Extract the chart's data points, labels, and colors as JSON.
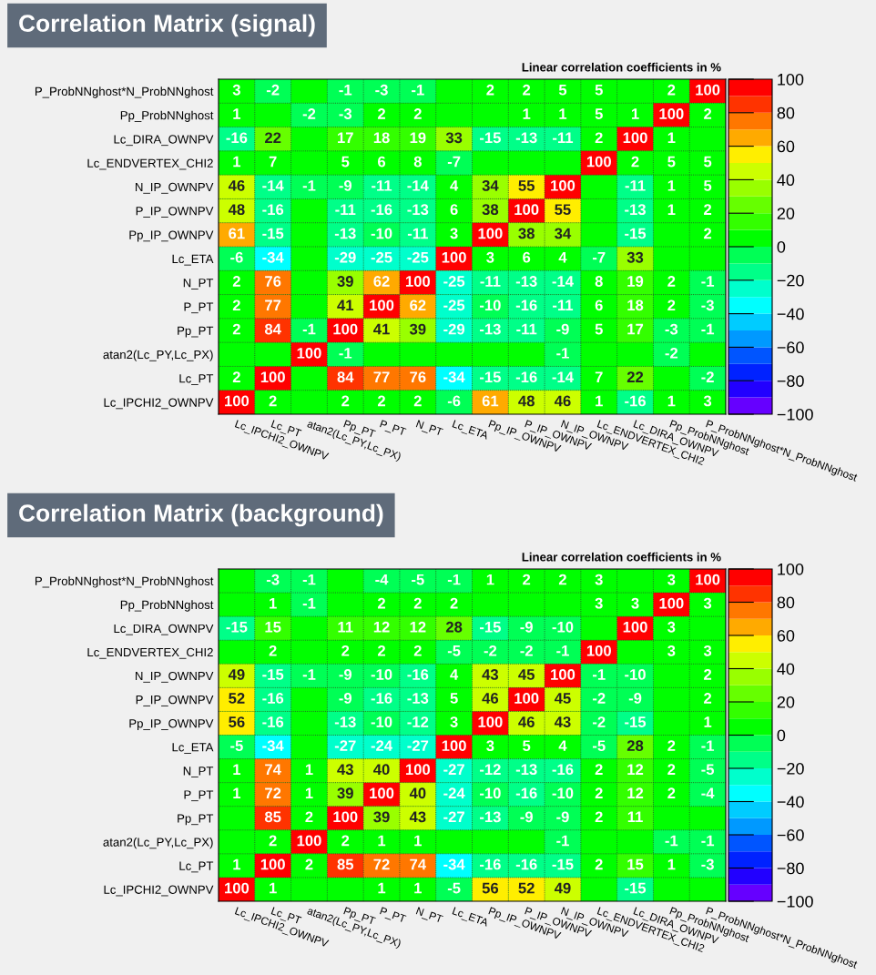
{
  "chart_data": [
    {
      "type": "heatmap",
      "title": "Correlation Matrix (signal)",
      "annotations": [
        "Linear correlation coefficients in %"
      ],
      "categories": [
        "Lc_IPCHI2_OWNPV",
        "Lc_PT",
        "atan2(Lc_PY,Lc_PX)",
        "Pp_PT",
        "P_PT",
        "N_PT",
        "Lc_ETA",
        "Pp_IP_OWNPV",
        "P_IP_OWNPV",
        "N_IP_OWNPV",
        "Lc_ENDVERTEX_CHI2",
        "Lc_DIRA_OWNPV",
        "Pp_ProbNNghost",
        "P_ProbNNghost*N_ProbNNghost"
      ],
      "y_categories": [
        "P_ProbNNghost*N_ProbNNghost",
        "Pp_ProbNNghost",
        "Lc_DIRA_OWNPV",
        "Lc_ENDVERTEX_CHI2",
        "N_IP_OWNPV",
        "P_IP_OWNPV",
        "Pp_IP_OWNPV",
        "Lc_ETA",
        "N_PT",
        "P_PT",
        "Pp_PT",
        "atan2(Lc_PY,Lc_PX)",
        "Lc_PT",
        "Lc_IPCHI2_OWNPV"
      ],
      "cells": [
        [
          3,
          -2,
          null,
          -1,
          -3,
          -1,
          null,
          2,
          2,
          5,
          5,
          null,
          2,
          100
        ],
        [
          1,
          null,
          -2,
          -3,
          2,
          2,
          null,
          null,
          1,
          1,
          5,
          1,
          100,
          2
        ],
        [
          -16,
          22,
          null,
          17,
          18,
          19,
          33,
          -15,
          -13,
          -11,
          2,
          100,
          1,
          null
        ],
        [
          1,
          7,
          null,
          5,
          6,
          8,
          -7,
          null,
          null,
          null,
          100,
          2,
          5,
          5
        ],
        [
          46,
          -14,
          -1,
          -9,
          -11,
          -14,
          4,
          34,
          55,
          100,
          null,
          -11,
          1,
          5
        ],
        [
          48,
          -16,
          null,
          -11,
          -16,
          -13,
          6,
          38,
          100,
          55,
          null,
          -13,
          1,
          2
        ],
        [
          61,
          -15,
          null,
          -13,
          -10,
          -11,
          3,
          100,
          38,
          34,
          null,
          -15,
          null,
          2
        ],
        [
          -6,
          -34,
          null,
          -29,
          -25,
          -25,
          100,
          3,
          6,
          4,
          -7,
          33,
          null,
          null
        ],
        [
          2,
          76,
          null,
          39,
          62,
          100,
          -25,
          -11,
          -13,
          -14,
          8,
          19,
          2,
          -1
        ],
        [
          2,
          77,
          null,
          41,
          100,
          62,
          -25,
          -10,
          -16,
          -11,
          6,
          18,
          2,
          -3
        ],
        [
          2,
          84,
          -1,
          100,
          41,
          39,
          -29,
          -13,
          -11,
          -9,
          5,
          17,
          -3,
          -1
        ],
        [
          null,
          null,
          100,
          -1,
          null,
          null,
          null,
          null,
          null,
          -1,
          null,
          null,
          -2,
          null
        ],
        [
          2,
          100,
          null,
          84,
          77,
          76,
          -34,
          -15,
          -16,
          -14,
          7,
          22,
          null,
          -2
        ],
        [
          100,
          2,
          null,
          2,
          2,
          2,
          -6,
          61,
          48,
          46,
          1,
          -16,
          1,
          3
        ]
      ],
      "data_labels": true,
      "clim": [
        -100,
        100
      ],
      "cticks": [
        -100,
        -80,
        -60,
        -40,
        -20,
        0,
        20,
        40,
        60,
        80,
        100
      ],
      "colors": [
        "#6600ff",
        "#2200ff",
        "#0022ff",
        "#0055ff",
        "#0099ff",
        "#00ccff",
        "#00ffff",
        "#00ffcc",
        "#00ff88",
        "#00ff55",
        "#00ff00",
        "#33ff00",
        "#66ff00",
        "#99ff00",
        "#ccff00",
        "#ffee00",
        "#ffaa00",
        "#ff7700",
        "#ff3300",
        "#ff0000"
      ],
      "grid": true
    },
    {
      "type": "heatmap",
      "title": "Correlation Matrix (background)",
      "annotations": [
        "Linear correlation coefficients in %"
      ],
      "categories": [
        "Lc_IPCHI2_OWNPV",
        "Lc_PT",
        "atan2(Lc_PY,Lc_PX)",
        "Pp_PT",
        "P_PT",
        "N_PT",
        "Lc_ETA",
        "Pp_IP_OWNPV",
        "P_IP_OWNPV",
        "N_IP_OWNPV",
        "Lc_ENDVERTEX_CHI2",
        "Lc_DIRA_OWNPV",
        "Pp_ProbNNghost",
        "P_ProbNNghost*N_ProbNNghost"
      ],
      "y_categories": [
        "P_ProbNNghost*N_ProbNNghost",
        "Pp_ProbNNghost",
        "Lc_DIRA_OWNPV",
        "Lc_ENDVERTEX_CHI2",
        "N_IP_OWNPV",
        "P_IP_OWNPV",
        "Pp_IP_OWNPV",
        "Lc_ETA",
        "N_PT",
        "P_PT",
        "Pp_PT",
        "atan2(Lc_PY,Lc_PX)",
        "Lc_PT",
        "Lc_IPCHI2_OWNPV"
      ],
      "cells": [
        [
          null,
          -3,
          -1,
          null,
          -4,
          -5,
          -1,
          1,
          2,
          2,
          3,
          null,
          3,
          100
        ],
        [
          null,
          1,
          -1,
          null,
          2,
          2,
          2,
          null,
          null,
          null,
          3,
          3,
          100,
          3
        ],
        [
          -15,
          15,
          null,
          11,
          12,
          12,
          28,
          -15,
          -9,
          -10,
          null,
          100,
          3,
          null
        ],
        [
          null,
          2,
          null,
          2,
          2,
          2,
          -5,
          -2,
          -2,
          -1,
          100,
          null,
          3,
          3
        ],
        [
          49,
          -15,
          -1,
          -9,
          -10,
          -16,
          4,
          43,
          45,
          100,
          -1,
          -10,
          null,
          2
        ],
        [
          52,
          -16,
          null,
          -9,
          -16,
          -13,
          5,
          46,
          100,
          45,
          -2,
          -9,
          null,
          2
        ],
        [
          56,
          -16,
          null,
          -13,
          -10,
          -12,
          3,
          100,
          46,
          43,
          -2,
          -15,
          null,
          1
        ],
        [
          -5,
          -34,
          null,
          -27,
          -24,
          -27,
          100,
          3,
          5,
          4,
          -5,
          28,
          2,
          -1
        ],
        [
          1,
          74,
          1,
          43,
          40,
          100,
          -27,
          -12,
          -13,
          -16,
          2,
          12,
          2,
          -5
        ],
        [
          1,
          72,
          1,
          39,
          100,
          40,
          -24,
          -10,
          -16,
          -10,
          2,
          12,
          2,
          -4
        ],
        [
          null,
          85,
          2,
          100,
          39,
          43,
          -27,
          -13,
          -9,
          -9,
          2,
          11,
          null,
          null
        ],
        [
          null,
          2,
          100,
          2,
          1,
          1,
          null,
          null,
          null,
          -1,
          null,
          null,
          -1,
          -1
        ],
        [
          1,
          100,
          2,
          85,
          72,
          74,
          -34,
          -16,
          -16,
          -15,
          2,
          15,
          1,
          -3
        ],
        [
          100,
          1,
          null,
          null,
          1,
          1,
          -5,
          56,
          52,
          49,
          null,
          -15,
          null,
          null
        ]
      ],
      "data_labels": true,
      "clim": [
        -100,
        100
      ],
      "cticks": [
        -100,
        -80,
        -60,
        -40,
        -20,
        0,
        20,
        40,
        60,
        80,
        100
      ],
      "colors": [
        "#6600ff",
        "#2200ff",
        "#0022ff",
        "#0055ff",
        "#0099ff",
        "#00ccff",
        "#00ffff",
        "#00ffcc",
        "#00ff88",
        "#00ff55",
        "#00ff00",
        "#33ff00",
        "#66ff00",
        "#99ff00",
        "#ccff00",
        "#ffee00",
        "#ffaa00",
        "#ff7700",
        "#ff3300",
        "#ff0000"
      ],
      "grid": true
    }
  ]
}
